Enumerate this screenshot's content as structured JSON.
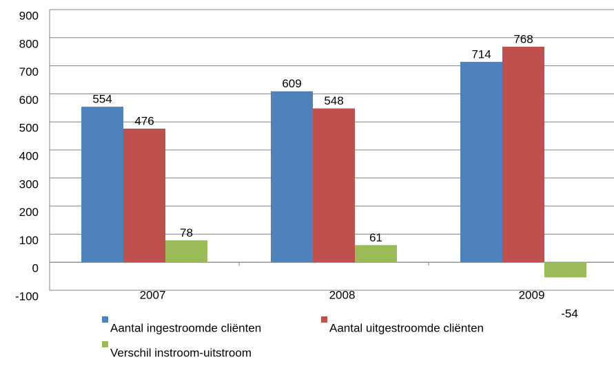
{
  "chart_data": {
    "type": "bar",
    "categories": [
      "2007",
      "2008",
      "2009"
    ],
    "series": [
      {
        "name": "Aantal ingestroomde cliënten",
        "color": "#4f81bd",
        "values": [
          554,
          609,
          714
        ]
      },
      {
        "name": "Aantal uitgestroomde cliënten",
        "color": "#c0504d",
        "values": [
          476,
          548,
          768
        ]
      },
      {
        "name": "Verschil instroom-uitstroom",
        "color": "#9bbb59",
        "values": [
          78,
          61,
          -54
        ]
      }
    ],
    "ylim": [
      -100,
      900
    ],
    "yticks": [
      -100,
      0,
      100,
      200,
      300,
      400,
      500,
      600,
      700,
      800,
      900
    ],
    "grid": true
  }
}
